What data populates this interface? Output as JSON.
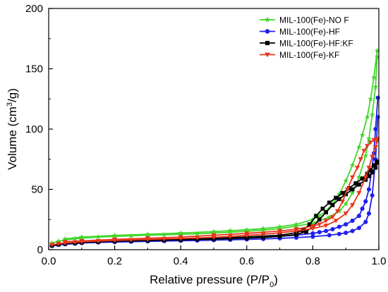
{
  "chart_data": {
    "type": "line",
    "xlabel": "Relative pressure (P/P",
    "xlabel_sub": "0",
    "xlabel_tail": ")",
    "ylabel_pre": "Volume (cm",
    "ylabel_sup": "3",
    "ylabel_post": "/g)",
    "xlim": [
      0.0,
      1.0
    ],
    "ylim": [
      0,
      200
    ],
    "xticks": [
      "0.0",
      "0.2",
      "0.4",
      "0.6",
      "0.8",
      "1.0"
    ],
    "yticks": [
      "0",
      "50",
      "100",
      "150",
      "200"
    ],
    "legend_position": "top-right",
    "grid": false,
    "series": [
      {
        "name": "MIL-100(Fe)-NO F",
        "color": "#44d62c",
        "marker": "star",
        "adsorption": [
          [
            0.01,
            5.5
          ],
          [
            0.03,
            7
          ],
          [
            0.05,
            8
          ],
          [
            0.08,
            9
          ],
          [
            0.1,
            9.5
          ],
          [
            0.15,
            10.5
          ],
          [
            0.2,
            11
          ],
          [
            0.25,
            11.5
          ],
          [
            0.3,
            12
          ],
          [
            0.35,
            12.3
          ],
          [
            0.4,
            12.7
          ],
          [
            0.45,
            13.2
          ],
          [
            0.5,
            13.8
          ],
          [
            0.55,
            14.5
          ],
          [
            0.6,
            15.2
          ],
          [
            0.65,
            16.2
          ],
          [
            0.7,
            17.5
          ],
          [
            0.75,
            19.5
          ],
          [
            0.8,
            22
          ],
          [
            0.85,
            27
          ],
          [
            0.88,
            32
          ],
          [
            0.9,
            38
          ],
          [
            0.92,
            47
          ],
          [
            0.94,
            60
          ],
          [
            0.96,
            78
          ],
          [
            0.97,
            92
          ],
          [
            0.98,
            112
          ],
          [
            0.99,
            135
          ],
          [
            0.995,
            160
          ]
        ],
        "desorption": [
          [
            0.995,
            165
          ],
          [
            0.985,
            143
          ],
          [
            0.975,
            125
          ],
          [
            0.965,
            110
          ],
          [
            0.95,
            95
          ],
          [
            0.94,
            85
          ],
          [
            0.92,
            70
          ],
          [
            0.9,
            57
          ],
          [
            0.88,
            46
          ],
          [
            0.86,
            38
          ],
          [
            0.84,
            32
          ],
          [
            0.82,
            28
          ],
          [
            0.8,
            25
          ],
          [
            0.75,
            21
          ],
          [
            0.7,
            19
          ],
          [
            0.65,
            17.5
          ],
          [
            0.6,
            16.5
          ],
          [
            0.55,
            15.8
          ],
          [
            0.5,
            15
          ],
          [
            0.4,
            13.8
          ],
          [
            0.3,
            12.8
          ],
          [
            0.2,
            11.8
          ],
          [
            0.1,
            10.5
          ],
          [
            0.05,
            9
          ]
        ]
      },
      {
        "name": "MIL-100(Fe)-HF",
        "color": "#1f1ff0",
        "marker": "circle",
        "adsorption": [
          [
            0.01,
            3
          ],
          [
            0.03,
            4
          ],
          [
            0.05,
            4.5
          ],
          [
            0.08,
            5
          ],
          [
            0.1,
            5.5
          ],
          [
            0.15,
            6
          ],
          [
            0.2,
            6.3
          ],
          [
            0.25,
            6.6
          ],
          [
            0.3,
            6.9
          ],
          [
            0.35,
            7.1
          ],
          [
            0.4,
            7.4
          ],
          [
            0.45,
            7.6
          ],
          [
            0.5,
            7.9
          ],
          [
            0.55,
            8.2
          ],
          [
            0.6,
            8.5
          ],
          [
            0.65,
            8.9
          ],
          [
            0.7,
            9.4
          ],
          [
            0.75,
            10
          ],
          [
            0.8,
            10.8
          ],
          [
            0.85,
            12
          ],
          [
            0.88,
            13
          ],
          [
            0.9,
            14
          ],
          [
            0.92,
            15.5
          ],
          [
            0.94,
            18
          ],
          [
            0.96,
            23
          ],
          [
            0.97,
            30
          ],
          [
            0.98,
            45
          ],
          [
            0.99,
            75
          ],
          [
            0.997,
            110
          ]
        ],
        "desorption": [
          [
            0.997,
            126
          ],
          [
            0.99,
            100
          ],
          [
            0.985,
            80
          ],
          [
            0.978,
            65
          ],
          [
            0.97,
            50
          ],
          [
            0.96,
            40
          ],
          [
            0.95,
            34
          ],
          [
            0.94,
            28
          ],
          [
            0.92,
            24
          ],
          [
            0.9,
            21
          ],
          [
            0.88,
            19
          ],
          [
            0.86,
            17
          ],
          [
            0.84,
            15.5
          ],
          [
            0.82,
            14.5
          ],
          [
            0.8,
            13.5
          ],
          [
            0.75,
            12
          ],
          [
            0.7,
            11.2
          ],
          [
            0.6,
            10
          ],
          [
            0.5,
            9
          ],
          [
            0.4,
            8.2
          ],
          [
            0.3,
            7.5
          ],
          [
            0.2,
            6.8
          ],
          [
            0.1,
            6
          ],
          [
            0.05,
            5
          ]
        ]
      },
      {
        "name": "MIL-100(Fe)-HF:KF",
        "color": "#000000",
        "marker": "square",
        "adsorption": [
          [
            0.01,
            3.5
          ],
          [
            0.03,
            4.5
          ],
          [
            0.05,
            5
          ],
          [
            0.08,
            5.5
          ],
          [
            0.1,
            6
          ],
          [
            0.15,
            6.5
          ],
          [
            0.2,
            7
          ],
          [
            0.25,
            7.3
          ],
          [
            0.3,
            7.6
          ],
          [
            0.35,
            7.9
          ],
          [
            0.4,
            8.2
          ],
          [
            0.45,
            8.5
          ],
          [
            0.5,
            8.8
          ],
          [
            0.55,
            9.2
          ],
          [
            0.6,
            9.6
          ],
          [
            0.65,
            10.2
          ],
          [
            0.7,
            11
          ],
          [
            0.75,
            12.5
          ],
          [
            0.78,
            15
          ],
          [
            0.8,
            19
          ],
          [
            0.82,
            25
          ],
          [
            0.84,
            31
          ],
          [
            0.86,
            37
          ],
          [
            0.88,
            42
          ],
          [
            0.9,
            46
          ],
          [
            0.92,
            50
          ],
          [
            0.94,
            54
          ],
          [
            0.96,
            58
          ],
          [
            0.97,
            61
          ],
          [
            0.98,
            64
          ],
          [
            0.99,
            68
          ],
          [
            0.995,
            72
          ]
        ],
        "desorption": [
          [
            0.995,
            73
          ],
          [
            0.985,
            70
          ],
          [
            0.975,
            66
          ],
          [
            0.965,
            63
          ],
          [
            0.95,
            59
          ],
          [
            0.93,
            55
          ],
          [
            0.91,
            51
          ],
          [
            0.89,
            47
          ],
          [
            0.87,
            43
          ],
          [
            0.85,
            39
          ],
          [
            0.83,
            34
          ],
          [
            0.81,
            28
          ],
          [
            0.79,
            21
          ],
          [
            0.77,
            16
          ],
          [
            0.75,
            14
          ],
          [
            0.7,
            12
          ],
          [
            0.6,
            10.5
          ],
          [
            0.5,
            9.5
          ],
          [
            0.4,
            8.8
          ],
          [
            0.3,
            8.2
          ],
          [
            0.2,
            7.6
          ],
          [
            0.1,
            6.8
          ],
          [
            0.05,
            6
          ]
        ]
      },
      {
        "name": "MIL-100(Fe)-KF",
        "color": "#e8361c",
        "marker": "triangle-down",
        "adsorption": [
          [
            0.01,
            4
          ],
          [
            0.03,
            5
          ],
          [
            0.05,
            5.5
          ],
          [
            0.08,
            6.2
          ],
          [
            0.1,
            6.6
          ],
          [
            0.15,
            7.2
          ],
          [
            0.2,
            7.7
          ],
          [
            0.25,
            8.1
          ],
          [
            0.3,
            8.5
          ],
          [
            0.35,
            8.9
          ],
          [
            0.4,
            9.3
          ],
          [
            0.45,
            9.8
          ],
          [
            0.5,
            10.3
          ],
          [
            0.55,
            11
          ],
          [
            0.6,
            11.8
          ],
          [
            0.65,
            12.8
          ],
          [
            0.7,
            14
          ],
          [
            0.75,
            15.5
          ],
          [
            0.8,
            17.5
          ],
          [
            0.84,
            20
          ],
          [
            0.87,
            24
          ],
          [
            0.9,
            30
          ],
          [
            0.92,
            37
          ],
          [
            0.94,
            47
          ],
          [
            0.96,
            60
          ],
          [
            0.97,
            68
          ],
          [
            0.98,
            77
          ],
          [
            0.99,
            85
          ],
          [
            0.995,
            90
          ]
        ],
        "desorption": [
          [
            0.995,
            92
          ],
          [
            0.985,
            91
          ],
          [
            0.975,
            89
          ],
          [
            0.965,
            86
          ],
          [
            0.955,
            82
          ],
          [
            0.945,
            75
          ],
          [
            0.935,
            68
          ],
          [
            0.92,
            60
          ],
          [
            0.905,
            50
          ],
          [
            0.89,
            40
          ],
          [
            0.875,
            32
          ],
          [
            0.86,
            27
          ],
          [
            0.84,
            24
          ],
          [
            0.82,
            21
          ],
          [
            0.8,
            19.5
          ],
          [
            0.75,
            17
          ],
          [
            0.7,
            15.5
          ],
          [
            0.6,
            13.5
          ],
          [
            0.5,
            12
          ],
          [
            0.4,
            10.5
          ],
          [
            0.3,
            9.5
          ],
          [
            0.2,
            8.5
          ],
          [
            0.1,
            7.3
          ],
          [
            0.05,
            6.5
          ]
        ]
      }
    ]
  }
}
